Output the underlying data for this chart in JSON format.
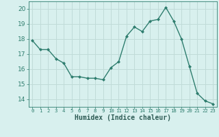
{
  "x": [
    0,
    1,
    2,
    3,
    4,
    5,
    6,
    7,
    8,
    9,
    10,
    11,
    12,
    13,
    14,
    15,
    16,
    17,
    18,
    19,
    20,
    21,
    22,
    23
  ],
  "y": [
    17.9,
    17.3,
    17.3,
    16.7,
    16.4,
    15.5,
    15.5,
    15.4,
    15.4,
    15.3,
    16.1,
    16.5,
    18.2,
    18.8,
    18.5,
    19.2,
    19.3,
    20.1,
    19.2,
    18.0,
    16.2,
    14.4,
    13.9,
    13.7
  ],
  "xlabel": "Humidex (Indice chaleur)",
  "ylim": [
    13.5,
    20.5
  ],
  "xlim": [
    -0.5,
    23.5
  ],
  "line_color": "#2e7d6e",
  "marker": "D",
  "marker_size": 2.0,
  "bg_color": "#d8f0ee",
  "grid_color": "#c0dbd8",
  "tick_color": "#2e7d6e",
  "font_color": "#2e5c55",
  "yticks": [
    14,
    15,
    16,
    17,
    18,
    19,
    20
  ],
  "xticks": [
    0,
    1,
    2,
    3,
    4,
    5,
    6,
    7,
    8,
    9,
    10,
    11,
    12,
    13,
    14,
    15,
    16,
    17,
    18,
    19,
    20,
    21,
    22,
    23
  ],
  "ytick_fontsize": 6.5,
  "xtick_fontsize": 5.2,
  "xlabel_fontsize": 7.0
}
